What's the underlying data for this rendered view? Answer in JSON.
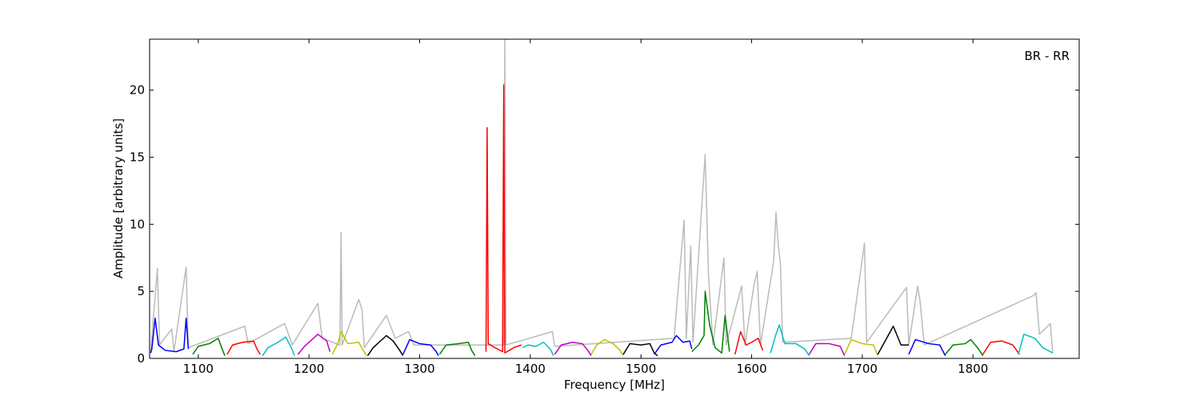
{
  "chart_data": {
    "type": "line",
    "annotation": "BR - RR",
    "x_label": "Frequency [MHz]",
    "y_label": "Amplitude [arbitrary units]",
    "xlim": [
      1056,
      1896
    ],
    "ylim": [
      0,
      23.8
    ],
    "xticks": [
      1100,
      1200,
      1300,
      1400,
      1500,
      1600,
      1700,
      1800
    ],
    "yticks": [
      0,
      5,
      10,
      15,
      20
    ],
    "series": [
      {
        "color": "#bbbbbb",
        "x": [
          1057,
          1063,
          1065,
          1076,
          1078,
          1089,
          1091,
          1142,
          1145,
          1178,
          1185,
          1208,
          1212,
          1228,
          1229,
          1230,
          1245,
          1248,
          1250,
          1270,
          1278,
          1290,
          1295,
          1376,
          1377,
          1378,
          1420,
          1422,
          1530,
          1532,
          1539,
          1541,
          1545,
          1547,
          1558,
          1561,
          1565,
          1575,
          1577,
          1591,
          1594,
          1602,
          1605,
          1608,
          1620,
          1622,
          1624,
          1626,
          1628,
          1690,
          1702,
          1704,
          1740,
          1742,
          1750,
          1752,
          1756,
          1855,
          1857,
          1860,
          1870,
          1872
        ],
        "values": [
          0.5,
          6.7,
          1.0,
          2.2,
          0.5,
          6.8,
          0.8,
          2.4,
          1.1,
          2.6,
          1.0,
          4.1,
          1.5,
          1.0,
          9.4,
          1.0,
          4.4,
          3.6,
          0.8,
          3.2,
          1.5,
          2.0,
          1.0,
          1.0,
          23.8,
          1.0,
          2.0,
          0.9,
          1.5,
          3.6,
          10.3,
          1.5,
          8.4,
          1.2,
          15.2,
          6.3,
          1.0,
          7.5,
          1.0,
          5.4,
          1.0,
          5.4,
          6.5,
          1.0,
          7.3,
          10.9,
          8.5,
          7.1,
          1.2,
          1.5,
          8.6,
          1.2,
          5.3,
          1.0,
          5.4,
          4.4,
          1.0,
          4.7,
          4.9,
          1.8,
          2.6,
          0.4
        ]
      },
      {
        "color": "#0000ff",
        "x": [
          1057,
          1058,
          1061,
          1064,
          1070,
          1080,
          1087,
          1089,
          1091
        ],
        "values": [
          0.4,
          0.7,
          3.0,
          1.0,
          0.6,
          0.5,
          0.7,
          3.0,
          0.7
        ]
      },
      {
        "color": "#008000",
        "x": [
          1095,
          1100,
          1110,
          1118,
          1122,
          1124
        ],
        "values": [
          0.3,
          0.9,
          1.1,
          1.5,
          0.6,
          0.2
        ]
      },
      {
        "color": "#ff0000",
        "x": [
          1126,
          1131,
          1140,
          1150,
          1153,
          1156
        ],
        "values": [
          0.3,
          1.0,
          1.2,
          1.3,
          0.7,
          0.3
        ]
      },
      {
        "color": "#00bfbf",
        "x": [
          1158,
          1163,
          1172,
          1179,
          1184,
          1187
        ],
        "values": [
          0.2,
          0.8,
          1.2,
          1.6,
          0.8,
          0.2
        ]
      },
      {
        "color": "#bf00bf",
        "x": [
          1190,
          1196,
          1208,
          1216,
          1219
        ],
        "values": [
          0.3,
          0.9,
          1.8,
          1.3,
          0.5
        ]
      },
      {
        "color": "#bfbf00",
        "x": [
          1221,
          1226,
          1229,
          1235,
          1245,
          1249,
          1252
        ],
        "values": [
          0.3,
          1.1,
          2.0,
          1.1,
          1.2,
          0.6,
          0.2
        ]
      },
      {
        "color": "#000000",
        "x": [
          1253,
          1258,
          1270,
          1276,
          1282,
          1285
        ],
        "values": [
          0.2,
          0.8,
          1.7,
          1.3,
          0.6,
          0.2
        ]
      },
      {
        "color": "#0000ff",
        "x": [
          1285,
          1291,
          1300,
          1310,
          1315,
          1317
        ],
        "values": [
          0.3,
          1.4,
          1.1,
          1.0,
          0.5,
          0.2
        ]
      },
      {
        "color": "#008000",
        "x": [
          1318,
          1324,
          1335,
          1344,
          1347,
          1350
        ],
        "values": [
          0.3,
          1.0,
          1.1,
          1.2,
          0.6,
          0.2
        ]
      },
      {
        "color": "#ff0000",
        "x": [
          1360,
          1361,
          1362,
          1368,
          1375,
          1376,
          1377,
          1385,
          1392
        ],
        "values": [
          0.5,
          17.2,
          1.1,
          0.8,
          0.5,
          20.4,
          0.4,
          0.8,
          1.0
        ]
      },
      {
        "color": "#00bfbf",
        "x": [
          1393,
          1398,
          1405,
          1412,
          1418,
          1421
        ],
        "values": [
          0.8,
          1.0,
          0.9,
          1.2,
          0.7,
          0.2
        ]
      },
      {
        "color": "#bf00bf",
        "x": [
          1422,
          1428,
          1438,
          1447,
          1452,
          1455
        ],
        "values": [
          0.3,
          1.0,
          1.2,
          1.1,
          0.6,
          0.2
        ]
      },
      {
        "color": "#bfbf00",
        "x": [
          1455,
          1460,
          1467,
          1475,
          1481,
          1484
        ],
        "values": [
          0.3,
          1.0,
          1.4,
          1.1,
          0.6,
          0.2
        ]
      },
      {
        "color": "#000000",
        "x": [
          1484,
          1490,
          1500,
          1508,
          1512,
          1515
        ],
        "values": [
          0.3,
          1.1,
          1.0,
          1.1,
          0.4,
          0.2
        ]
      },
      {
        "color": "#0000ff",
        "x": [
          1512,
          1518,
          1528,
          1532,
          1538,
          1544,
          1546
        ],
        "values": [
          0.3,
          1.0,
          1.2,
          1.7,
          1.2,
          1.3,
          0.7
        ]
      },
      {
        "color": "#008000",
        "x": [
          1546,
          1552,
          1557,
          1558,
          1562,
          1567,
          1573,
          1576,
          1580
        ],
        "values": [
          0.5,
          1.0,
          1.7,
          5.0,
          2.5,
          0.8,
          0.4,
          3.2,
          0.5
        ]
      },
      {
        "color": "#ff0000",
        "x": [
          1585,
          1590,
          1595,
          1600,
          1606,
          1610
        ],
        "values": [
          0.3,
          2.0,
          1.0,
          1.2,
          1.5,
          0.6
        ]
      },
      {
        "color": "#00bfbf",
        "x": [
          1617,
          1622,
          1625,
          1630,
          1640,
          1648,
          1652
        ],
        "values": [
          0.4,
          1.8,
          2.5,
          1.1,
          1.1,
          0.7,
          0.2
        ]
      },
      {
        "color": "#bf00bf",
        "x": [
          1652,
          1658,
          1670,
          1680,
          1684
        ],
        "values": [
          0.3,
          1.1,
          1.1,
          0.9,
          0.2
        ]
      },
      {
        "color": "#bfbf00",
        "x": [
          1684,
          1690,
          1700,
          1710,
          1714
        ],
        "values": [
          0.3,
          1.4,
          1.1,
          1.0,
          0.2
        ]
      },
      {
        "color": "#000000",
        "x": [
          1714,
          1720,
          1728,
          1735,
          1742
        ],
        "values": [
          0.3,
          1.2,
          2.4,
          1.0,
          1.0
        ]
      },
      {
        "color": "#0000ff",
        "x": [
          1742,
          1748,
          1752,
          1760,
          1770,
          1775
        ],
        "values": [
          0.3,
          1.4,
          1.3,
          1.1,
          1.0,
          0.2
        ]
      },
      {
        "color": "#008000",
        "x": [
          1775,
          1782,
          1793,
          1798,
          1805,
          1809
        ],
        "values": [
          0.3,
          1.0,
          1.1,
          1.4,
          0.7,
          0.2
        ]
      },
      {
        "color": "#ff0000",
        "x": [
          1809,
          1816,
          1826,
          1836,
          1842
        ],
        "values": [
          0.3,
          1.2,
          1.3,
          1.0,
          0.3
        ]
      },
      {
        "color": "#00bfbf",
        "x": [
          1841,
          1846,
          1856,
          1863,
          1870,
          1872
        ],
        "values": [
          0.3,
          1.8,
          1.5,
          0.8,
          0.5,
          0.4
        ]
      }
    ]
  }
}
